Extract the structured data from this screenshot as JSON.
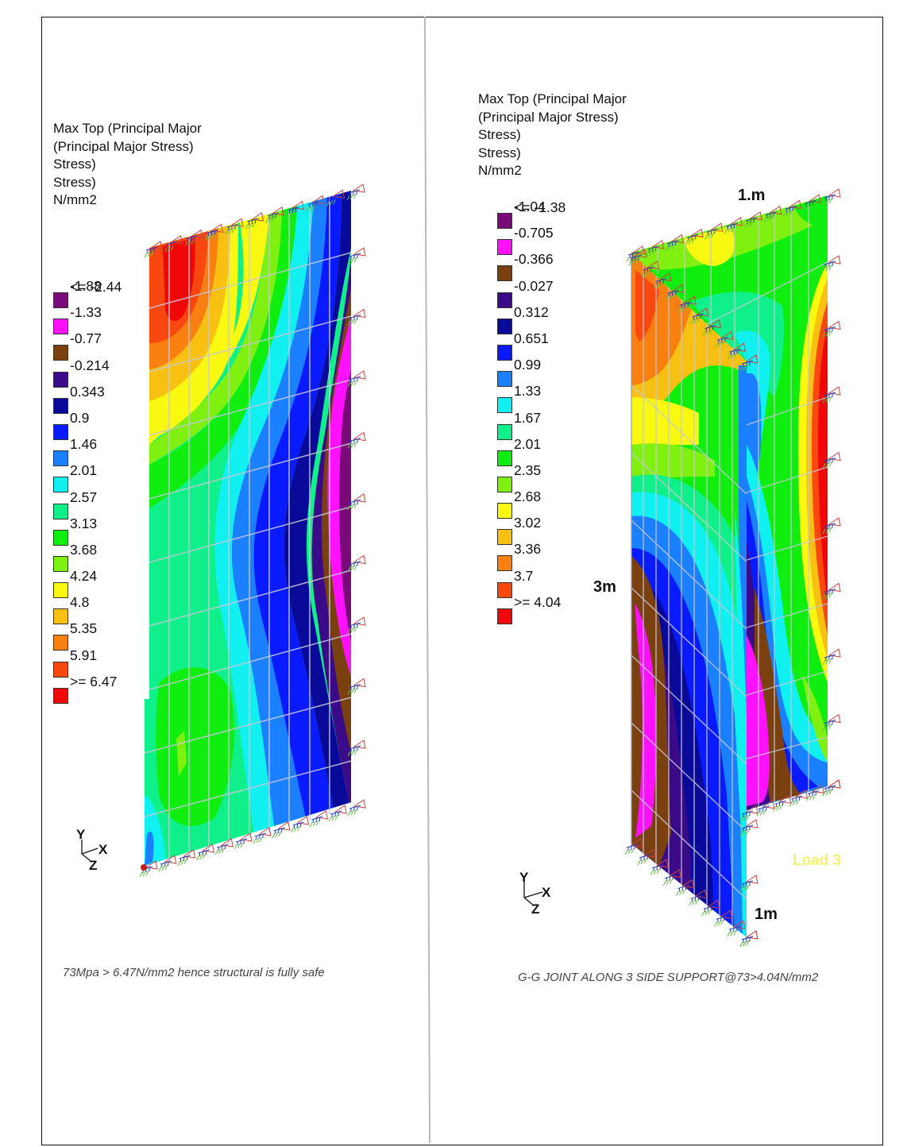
{
  "left_panel": {
    "legend_title": "Max Top (Principal Major\n(Principal Major Stress)\nStress)\nStress)\nN/mm2",
    "legend": {
      "first_label": "<= -2.44",
      "items": [
        {
          "color": "#7a0a7a",
          "label": "-1.88"
        },
        {
          "color": "#ff10ff",
          "label": "-1.33"
        },
        {
          "color": "#7a4010",
          "label": "-0.77"
        },
        {
          "color": "#3a0a88",
          "label": "-0.214"
        },
        {
          "color": "#0a0a9a",
          "label": "0.343"
        },
        {
          "color": "#0a1aff",
          "label": "0.9"
        },
        {
          "color": "#1a80ff",
          "label": "1.46"
        },
        {
          "color": "#10f0f0",
          "label": "2.01"
        },
        {
          "color": "#10f08a",
          "label": "2.57"
        },
        {
          "color": "#10ee10",
          "label": "3.13"
        },
        {
          "color": "#80f010",
          "label": "3.68"
        },
        {
          "color": "#f8f810",
          "label": "4.24"
        },
        {
          "color": "#f8c010",
          "label": "4.8"
        },
        {
          "color": "#f88010",
          "label": "5.35"
        },
        {
          "color": "#f84810",
          "label": "5.91"
        },
        {
          "color": "#f00808",
          "label": ">= 6.47"
        }
      ]
    },
    "axis": {
      "y": "Y",
      "x": "X",
      "z": "Z"
    },
    "caption": "73Mpa > 6.47N/mm2 hence structural is fully safe"
  },
  "right_panel": {
    "legend_title": "Max Top (Principal Major\n(Principal Major Stress)\nStress)\nStress)\nN/mm2",
    "legend": {
      "first_label": "<= -1.38",
      "items": [
        {
          "color": "#7a0a7a",
          "label": "-1.04"
        },
        {
          "color": "#ff10ff",
          "label": "-0.705"
        },
        {
          "color": "#7a4010",
          "label": "-0.366"
        },
        {
          "color": "#3a0a88",
          "label": "-0.027"
        },
        {
          "color": "#0a0a9a",
          "label": "0.312"
        },
        {
          "color": "#0a1aff",
          "label": "0.651"
        },
        {
          "color": "#1a80ff",
          "label": "0.99"
        },
        {
          "color": "#10f0f0",
          "label": "1.33"
        },
        {
          "color": "#10f08a",
          "label": "1.67"
        },
        {
          "color": "#10ee10",
          "label": "2.01"
        },
        {
          "color": "#80f010",
          "label": "2.35"
        },
        {
          "color": "#f8f810",
          "label": "2.68"
        },
        {
          "color": "#f8c010",
          "label": "3.02"
        },
        {
          "color": "#f88010",
          "label": "3.36"
        },
        {
          "color": "#f84810",
          "label": "3.7"
        },
        {
          "color": "#f00808",
          "label": ">= 4.04"
        }
      ]
    },
    "dimensions": {
      "top": "1.m",
      "height": "3m",
      "bottom": "1m"
    },
    "load_label": "Load 3",
    "axis": {
      "y": "Y",
      "x": "X",
      "z": "Z"
    },
    "caption": "G-G JOINT ALONG 3 SIDE SUPPORT@73>4.04N/mm2"
  }
}
